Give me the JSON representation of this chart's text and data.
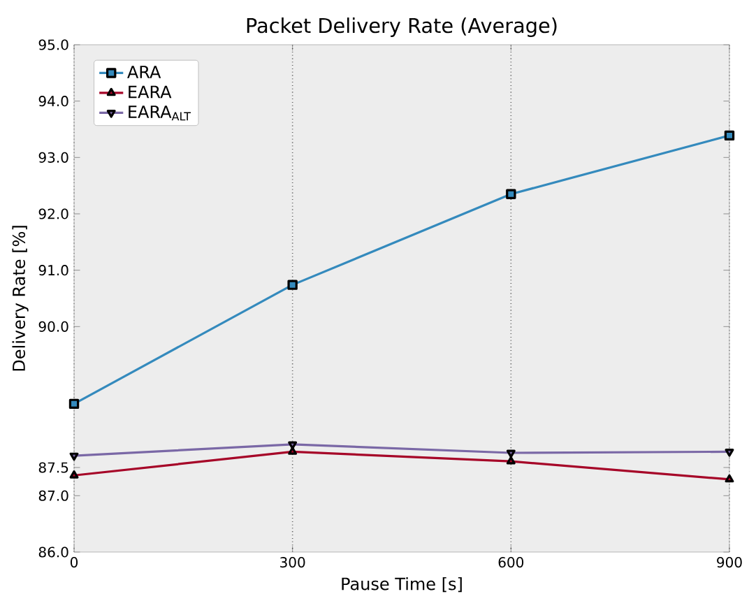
{
  "chart_data": {
    "type": "line",
    "title": "Packet Delivery Rate (Average)",
    "xlabel": "Pause Time [s]",
    "ylabel": "Delivery Rate [%]",
    "x": [
      0,
      300,
      600,
      900
    ],
    "series": [
      {
        "name": "ARA",
        "color": "#348abd",
        "marker": "square",
        "values": [
          88.63,
          90.74,
          92.35,
          93.39
        ]
      },
      {
        "name": "EARA",
        "color": "#a60628",
        "marker": "triangle",
        "values": [
          87.36,
          87.78,
          87.61,
          87.29
        ]
      },
      {
        "name": "EARA$_{ALT}$",
        "color": "#7a68a6",
        "marker": "triangle-down",
        "values": [
          87.71,
          87.91,
          87.76,
          87.78
        ]
      }
    ],
    "xlim": [
      0,
      900
    ],
    "xticks": [
      0,
      300,
      600,
      900
    ],
    "ylim": [
      86,
      95
    ],
    "yticks": [
      {
        "value": 86,
        "label": "86.0"
      },
      {
        "value": 87,
        "label": "87.0"
      },
      {
        "value": 87.5,
        "label": "87.5"
      },
      {
        "value": 90,
        "label": "90.0"
      },
      {
        "value": 91,
        "label": "91.0"
      },
      {
        "value": 92,
        "label": "92.0"
      },
      {
        "value": 93,
        "label": "93.0"
      },
      {
        "value": 94,
        "label": "94.0"
      },
      {
        "value": 95,
        "label": "95.0"
      }
    ],
    "grid": "x",
    "legend": "top left",
    "line_style": "solid"
  }
}
